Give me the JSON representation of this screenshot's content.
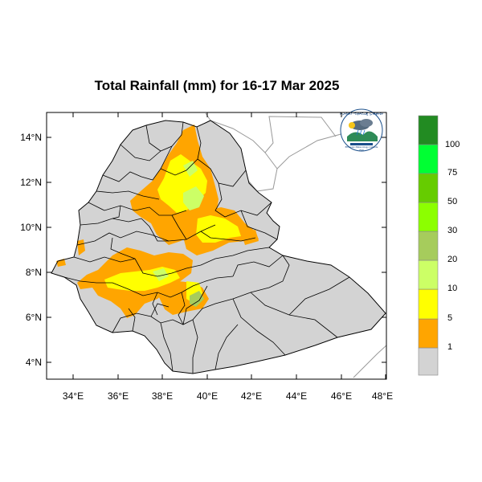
{
  "title": "Total Rainfall (mm) for 16-17 Mar 2025",
  "map": {
    "region": "Ethiopia",
    "lon_range": [
      33,
      48.2
    ],
    "lat_range": [
      3.2,
      15
    ],
    "x_ticks": [
      "34°E",
      "36°E",
      "38°E",
      "40°E",
      "42°E",
      "44°E",
      "46°E",
      "48°E"
    ],
    "y_ticks": [
      "14°N",
      "12°N",
      "10°N",
      "8°N",
      "6°N",
      "4°N"
    ],
    "background_fill": "#d3d3d3",
    "boundary_color": "#000000",
    "neighbor_boundary_color": "#999999"
  },
  "legend": {
    "bins": [
      {
        "label": "1",
        "color": "#d3d3d3"
      },
      {
        "label": "",
        "color": "#ffa500"
      },
      {
        "label": "5",
        "color": "#ffff00"
      },
      {
        "label": "10",
        "color": "#ccff66"
      },
      {
        "label": "20",
        "color": "#a6cc5c"
      },
      {
        "label": "30",
        "color": "#8cff00"
      },
      {
        "label": "50",
        "color": "#66cc00"
      },
      {
        "label": "75",
        "color": "#00ff33"
      },
      {
        "label": "100",
        "color": "#00e000"
      },
      {
        "label": "",
        "color": "#228b22"
      }
    ]
  },
  "logo": {
    "top_text": "የኢትዮጵያ ሚቲዎሮሎጂ ኢንስቲትዩት",
    "bottom_text": "Ethiopian Meteorology Institute",
    "abbr": "EMI"
  }
}
